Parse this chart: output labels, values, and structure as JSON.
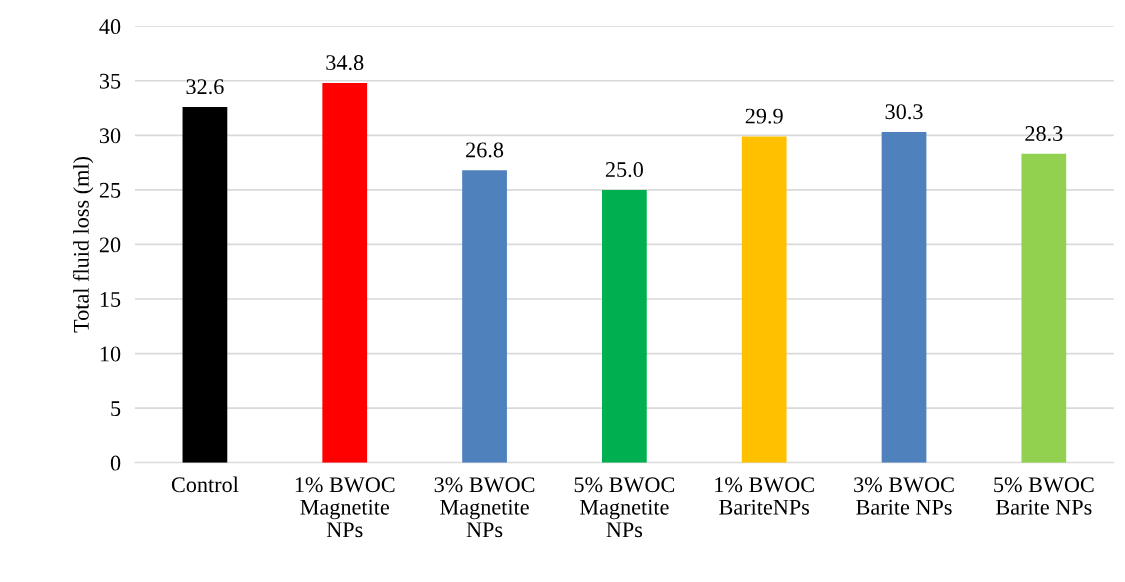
{
  "chart_data": {
    "type": "bar",
    "ylabel": "Total fluid loss (ml)",
    "categories": [
      "Control",
      "1% BWOC\nMagnetite\nNPs",
      "3% BWOC\nMagnetite\nNPs",
      "5% BWOC\nMagnetite\nNPs",
      "1% BWOC\nBariteNPs",
      "3% BWOC\nBarite NPs",
      "5% BWOC\nBarite NPs"
    ],
    "values": [
      32.6,
      34.8,
      26.8,
      25.0,
      29.9,
      30.3,
      28.3
    ],
    "value_labels": [
      "32.6",
      "34.8",
      "26.8",
      "25.0",
      "29.9",
      "30.3",
      "28.3"
    ],
    "colors": [
      "#000000",
      "#ff0000",
      "#4f81bd",
      "#00b050",
      "#ffc000",
      "#4f81bd",
      "#92d050"
    ],
    "ylim": [
      0,
      40
    ],
    "yticks": [
      0,
      5,
      10,
      15,
      20,
      25,
      30,
      35,
      40
    ],
    "grid": "y"
  }
}
